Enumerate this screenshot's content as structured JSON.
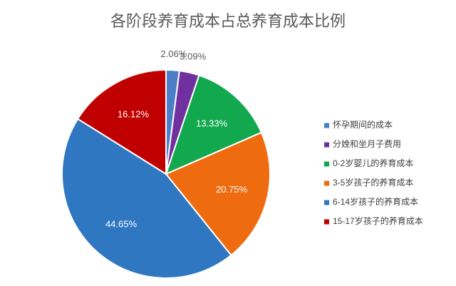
{
  "chart_data": {
    "type": "pie",
    "title": "各阶段养育成本占总养育成本比例",
    "categories": [
      "怀孕期间的成本",
      "分娩和坐月子费用",
      "0-2岁婴儿的养育成本",
      "3-5岁孩子的养育成本",
      "6-14岁孩子的养育成本",
      "15-17岁孩子的养育成本"
    ],
    "values": [
      2.06,
      3.09,
      13.33,
      20.75,
      44.65,
      16.12
    ],
    "value_labels": [
      "2.06%",
      "3.09%",
      "13.33%",
      "20.75%",
      "44.65%",
      "16.12%"
    ],
    "colors": [
      "#4a7fc8",
      "#7030a0",
      "#12a84e",
      "#ef6b10",
      "#2f77c1",
      "#c00000"
    ],
    "legend": "right"
  }
}
